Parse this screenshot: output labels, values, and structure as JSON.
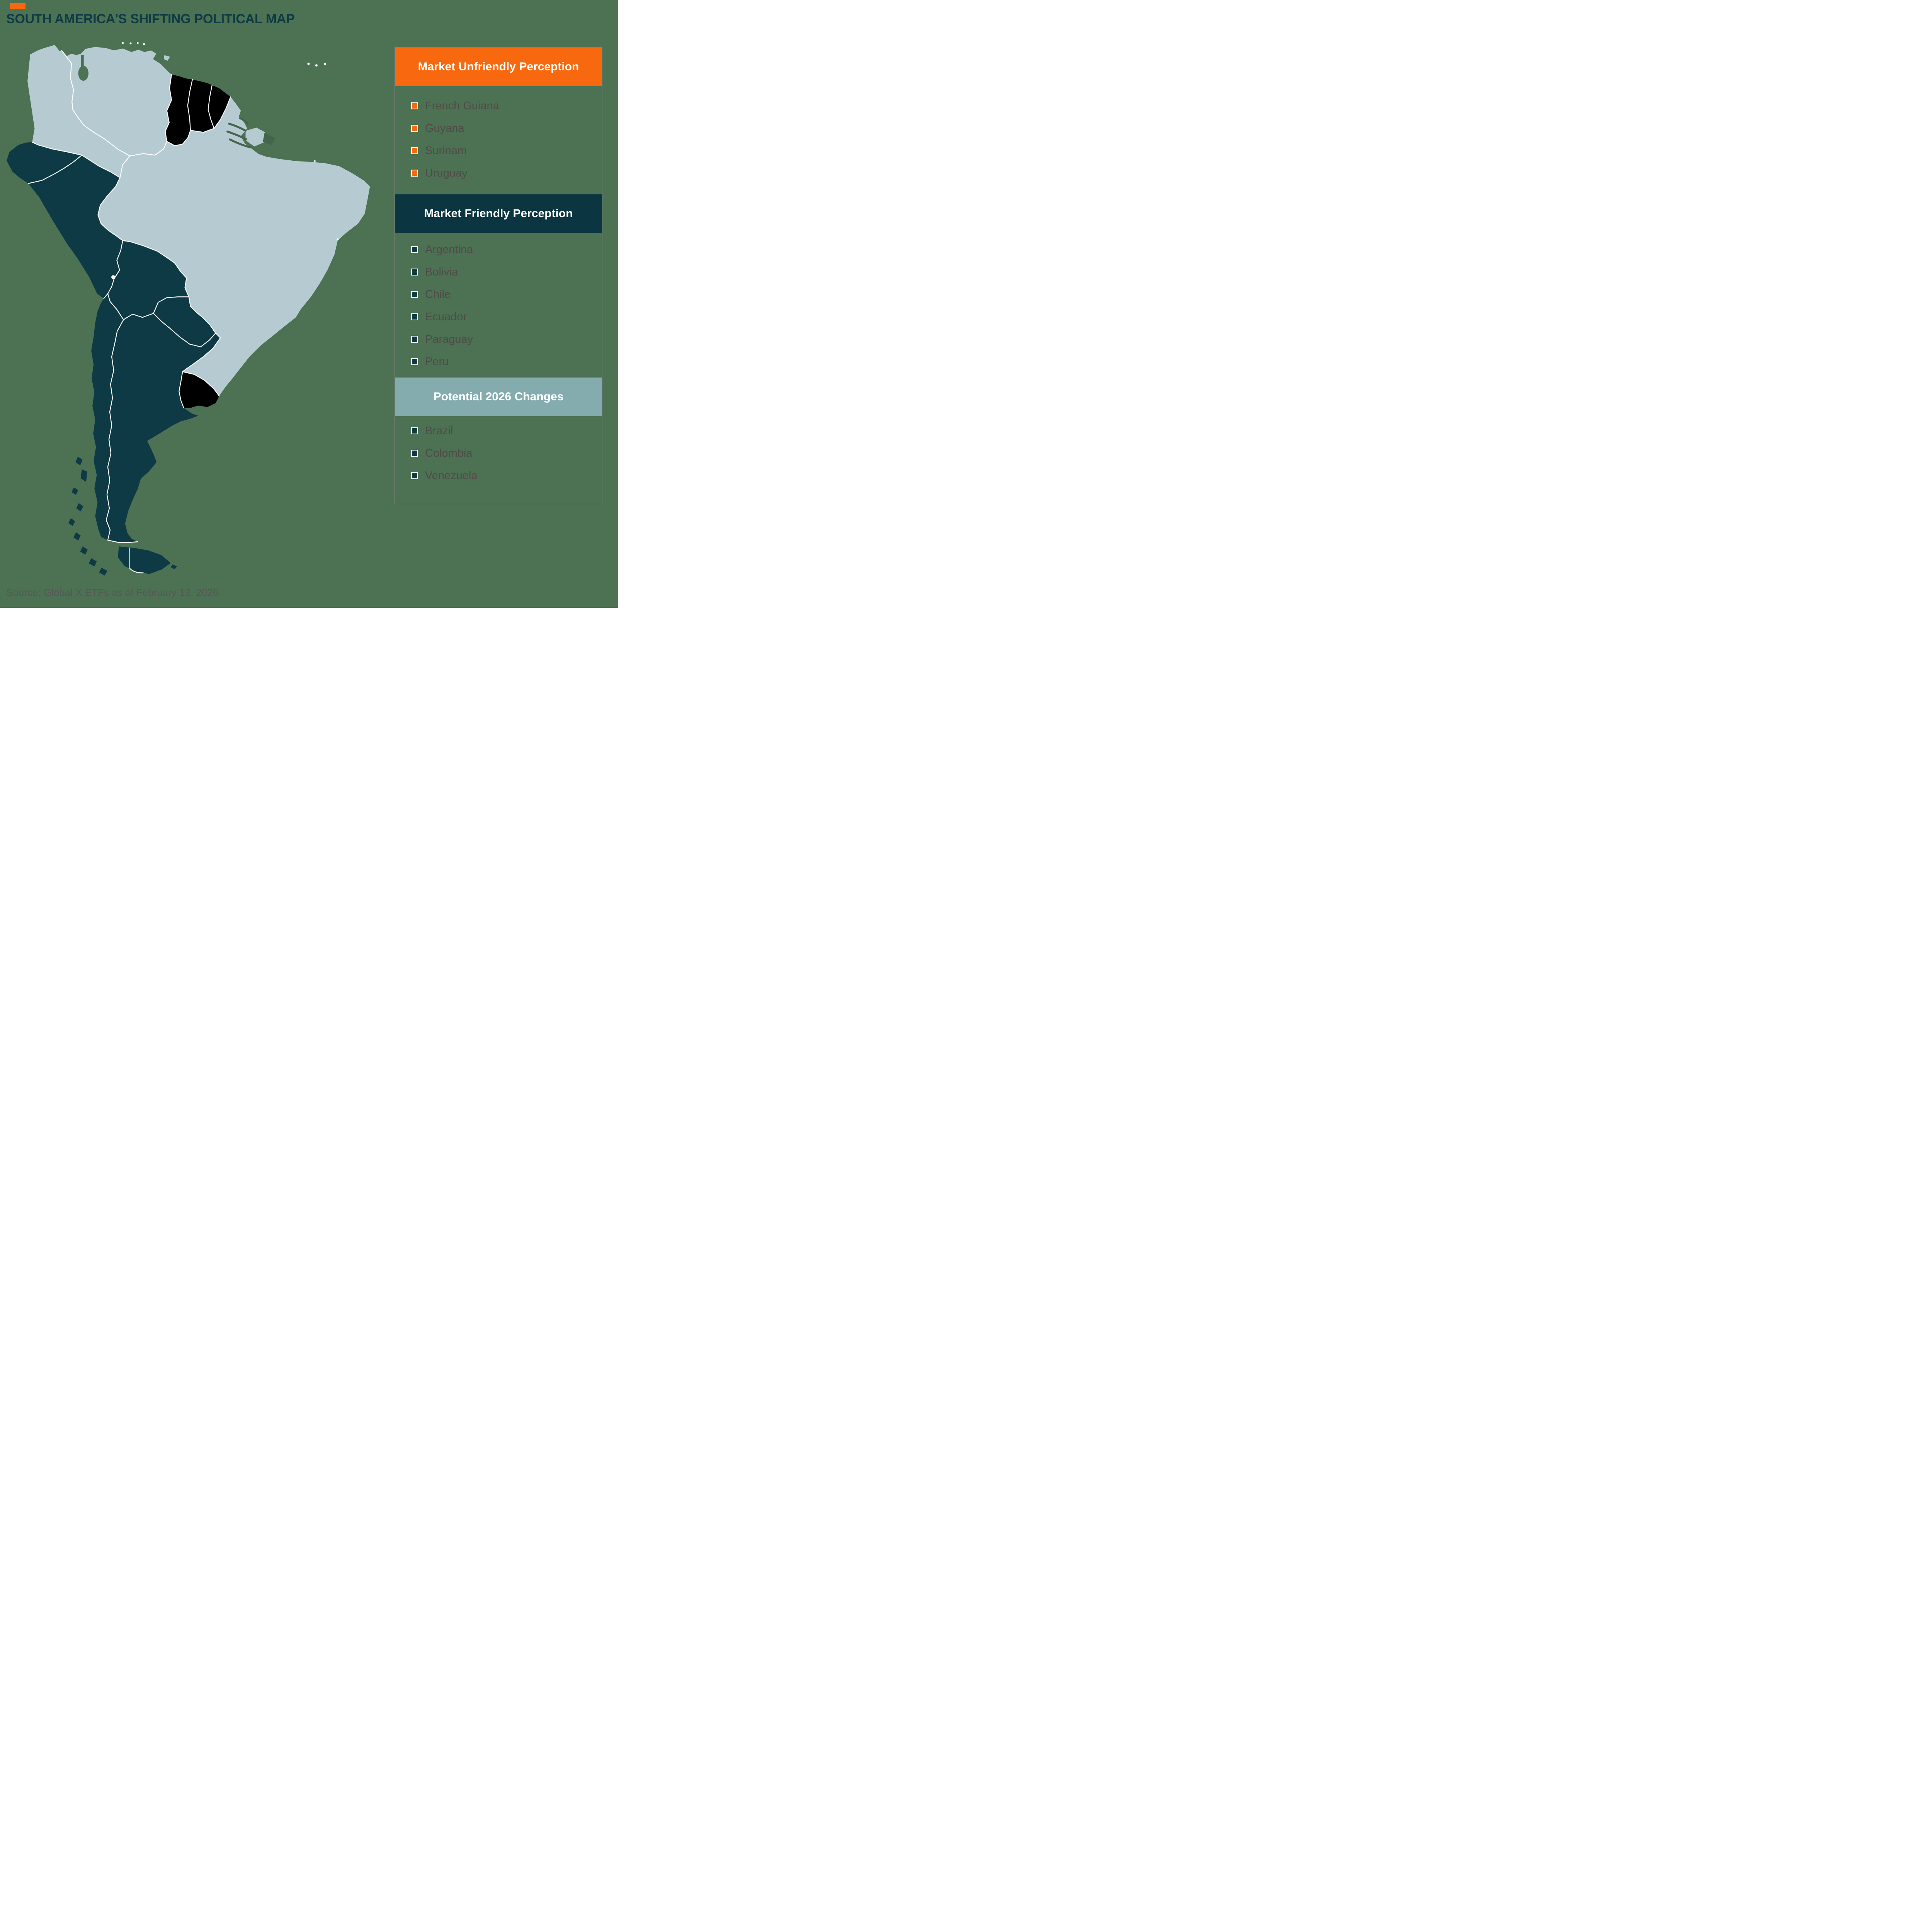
{
  "page": {
    "background": "#4D7153"
  },
  "title": {
    "text": "SOUTH AMERICA'S SHIFTING POLITICAL MAP",
    "color": "#0D3A44",
    "marker_color": "#F8690F"
  },
  "legend": {
    "border_color": "#7E7E7E",
    "item_text_color": "#4F4B48",
    "sections": [
      {
        "id": "market-unfriendly",
        "header": "Market Unfriendly Perception",
        "header_bg": "#F8690F",
        "header_text_color": "#FFFFFF",
        "bullet_color": "#F8690F",
        "items": [
          "French Guiana",
          "Guyana",
          "Surinam",
          "Uruguay"
        ]
      },
      {
        "id": "market-friendly",
        "header": "Market Friendly Perception",
        "header_bg": "#0B3540",
        "header_text_color": "#FFFFFF",
        "bullet_color": "#0D3A44",
        "items": [
          "Argentina",
          "Bolivia",
          "Chile",
          "Ecuador",
          "Paraguay",
          "Peru"
        ]
      },
      {
        "id": "potential-2026",
        "header": "Potential 2026 Changes",
        "header_bg": "#84ABAD",
        "header_text_color": "#FFFFFF",
        "bullet_color": "#0D3A44",
        "items": [
          "Brazil",
          "Colombia",
          "Venezuela"
        ]
      }
    ]
  },
  "map": {
    "region": "South America",
    "colors": {
      "market_unfriendly": "#F8690F",
      "market_friendly": "#0D3A44",
      "potential_2026": "#B5CBD1"
    },
    "water_color": "#44644C",
    "border_color": "#FFFFFF",
    "country_categories": {
      "colombia": "potential_2026",
      "venezuela": "potential_2026",
      "brazil": "potential_2026",
      "marajo_island": "potential_2026",
      "trinidad": "potential_2026",
      "ecuador": "market_friendly",
      "peru": "market_friendly",
      "bolivia": "market_friendly",
      "paraguay": "market_friendly",
      "chile": "market_friendly",
      "argentina": "market_friendly",
      "tierra_del_fuego": "market_friendly",
      "staten_island": "market_friendly",
      "chile_islands": "market_friendly"
    }
  },
  "source": {
    "text": "Source: Global X ETFs as of February 13, 2026.",
    "color": "#575757"
  }
}
